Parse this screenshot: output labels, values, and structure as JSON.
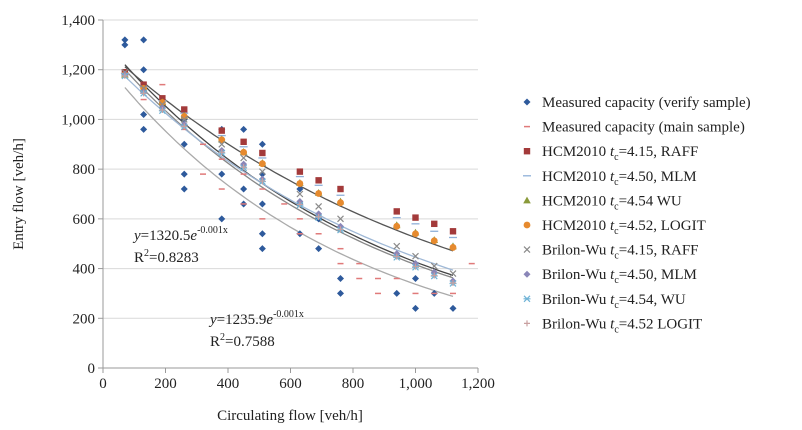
{
  "chart_data": {
    "type": "scatter",
    "title": "",
    "xlabel": "Circulating flow [veh/h]",
    "ylabel": "Entry flow [veh/h]",
    "xlim": [
      0,
      1200
    ],
    "ylim": [
      0,
      1400
    ],
    "x_ticks": [
      0,
      200,
      400,
      600,
      800,
      1000,
      1200
    ],
    "x_tick_labels": [
      "0",
      "200",
      "400",
      "600",
      "800",
      "1,000",
      "1,200"
    ],
    "y_ticks": [
      0,
      200,
      400,
      600,
      800,
      1000,
      1200,
      1400
    ],
    "y_tick_labels": [
      "0",
      "200",
      "400",
      "600",
      "800",
      "1,000",
      "1,200",
      "1,400"
    ],
    "grid": "horizontal",
    "legend_position": "right",
    "series": [
      {
        "name": "Measured capacity (verify sample)",
        "marker": "diamond",
        "color": "#2e5a9c",
        "points": [
          [
            70,
            1320
          ],
          [
            70,
            1300
          ],
          [
            130,
            1320
          ],
          [
            130,
            1200
          ],
          [
            130,
            960
          ],
          [
            130,
            1020
          ],
          [
            260,
            1000
          ],
          [
            260,
            900
          ],
          [
            260,
            780
          ],
          [
            260,
            720
          ],
          [
            380,
            960
          ],
          [
            380,
            780
          ],
          [
            380,
            600
          ],
          [
            450,
            960
          ],
          [
            450,
            720
          ],
          [
            450,
            660
          ],
          [
            510,
            900
          ],
          [
            510,
            780
          ],
          [
            510,
            660
          ],
          [
            510,
            540
          ],
          [
            510,
            480
          ],
          [
            630,
            720
          ],
          [
            630,
            660
          ],
          [
            630,
            540
          ],
          [
            690,
            600
          ],
          [
            690,
            480
          ],
          [
            760,
            360
          ],
          [
            760,
            300
          ],
          [
            940,
            300
          ],
          [
            1000,
            420
          ],
          [
            1000,
            360
          ],
          [
            1000,
            240
          ],
          [
            1060,
            300
          ],
          [
            1120,
            240
          ]
        ]
      },
      {
        "name": "Measured capacity (main sample)",
        "marker": "dash",
        "color": "#e07a7a",
        "points": [
          [
            70,
            1200
          ],
          [
            130,
            1140
          ],
          [
            130,
            1080
          ],
          [
            190,
            1140
          ],
          [
            190,
            1080
          ],
          [
            260,
            960
          ],
          [
            320,
            900
          ],
          [
            320,
            780
          ],
          [
            380,
            840
          ],
          [
            380,
            720
          ],
          [
            450,
            780
          ],
          [
            450,
            660
          ],
          [
            510,
            720
          ],
          [
            510,
            600
          ],
          [
            580,
            660
          ],
          [
            630,
            600
          ],
          [
            630,
            540
          ],
          [
            690,
            540
          ],
          [
            760,
            480
          ],
          [
            760,
            420
          ],
          [
            820,
            420
          ],
          [
            820,
            360
          ],
          [
            880,
            360
          ],
          [
            880,
            300
          ],
          [
            940,
            360
          ],
          [
            1000,
            300
          ],
          [
            1060,
            300
          ],
          [
            1120,
            300
          ],
          [
            1180,
            420
          ]
        ]
      },
      {
        "name": "HCM2010 tc=4.15, RAFF",
        "name_prefix": "HCM2010 ",
        "name_sub": "c",
        "name_suffix": "=4.15, RAFF",
        "marker": "square",
        "color": "#a33a3a",
        "points": [
          [
            70,
            1190
          ],
          [
            130,
            1140
          ],
          [
            190,
            1085
          ],
          [
            260,
            1040
          ],
          [
            380,
            955
          ],
          [
            450,
            910
          ],
          [
            510,
            865
          ],
          [
            630,
            790
          ],
          [
            690,
            755
          ],
          [
            760,
            720
          ],
          [
            940,
            630
          ],
          [
            1000,
            605
          ],
          [
            1060,
            580
          ],
          [
            1120,
            550
          ]
        ]
      },
      {
        "name": "HCM2010 tc=4.50, MLM",
        "name_prefix": "HCM2010 ",
        "name_sub": "c",
        "name_suffix": "=4.50, MLM",
        "marker": "line",
        "color": "#8fb0d8",
        "points": [
          [
            70,
            1185
          ],
          [
            130,
            1130
          ],
          [
            190,
            1075
          ],
          [
            260,
            1025
          ],
          [
            380,
            935
          ],
          [
            450,
            890
          ],
          [
            510,
            845
          ],
          [
            630,
            770
          ],
          [
            690,
            735
          ],
          [
            760,
            695
          ],
          [
            940,
            605
          ],
          [
            1000,
            580
          ],
          [
            1060,
            550
          ],
          [
            1120,
            525
          ]
        ]
      },
      {
        "name": "HCM2010 tc=4.54 WU",
        "name_prefix": "HCM2010 ",
        "name_sub": "c",
        "name_suffix": "=4.54 WU",
        "marker": "triangle",
        "color": "#8a9a3a",
        "points": [
          [
            70,
            1180
          ],
          [
            130,
            1125
          ],
          [
            190,
            1070
          ],
          [
            260,
            1015
          ],
          [
            380,
            920
          ],
          [
            450,
            870
          ],
          [
            510,
            825
          ],
          [
            630,
            745
          ],
          [
            690,
            705
          ],
          [
            760,
            670
          ],
          [
            940,
            575
          ],
          [
            1000,
            545
          ],
          [
            1060,
            515
          ],
          [
            1120,
            490
          ]
        ]
      },
      {
        "name": "HCM2010 tc=4.52, LOGIT",
        "name_prefix": "HCM2010 ",
        "name_sub": "c",
        "name_suffix": "=4.52, LOGIT",
        "marker": "circle",
        "color": "#e68a2e",
        "points": [
          [
            70,
            1180
          ],
          [
            130,
            1125
          ],
          [
            190,
            1068
          ],
          [
            260,
            1012
          ],
          [
            380,
            918
          ],
          [
            450,
            868
          ],
          [
            510,
            822
          ],
          [
            630,
            742
          ],
          [
            690,
            702
          ],
          [
            760,
            665
          ],
          [
            940,
            570
          ],
          [
            1000,
            540
          ],
          [
            1060,
            512
          ],
          [
            1120,
            485
          ]
        ]
      },
      {
        "name": "Brilon-Wu tc=4.15, RAFF",
        "name_prefix": "Brilon-Wu ",
        "name_sub": "c",
        "name_suffix": "=4.15, RAFF",
        "marker": "x",
        "color": "#8a8a8a",
        "points": [
          [
            70,
            1190
          ],
          [
            130,
            1125
          ],
          [
            190,
            1060
          ],
          [
            260,
            1000
          ],
          [
            380,
            900
          ],
          [
            450,
            845
          ],
          [
            510,
            790
          ],
          [
            630,
            700
          ],
          [
            690,
            650
          ],
          [
            760,
            600
          ],
          [
            940,
            490
          ],
          [
            1000,
            450
          ],
          [
            1060,
            410
          ],
          [
            1120,
            380
          ]
        ]
      },
      {
        "name": "Brilon-Wu tc=4.50, MLM",
        "name_prefix": "Brilon-Wu ",
        "name_sub": "c",
        "name_suffix": "=4.50, MLM",
        "marker": "diamond",
        "color": "#8a86b8",
        "points": [
          [
            70,
            1180
          ],
          [
            130,
            1110
          ],
          [
            190,
            1045
          ],
          [
            260,
            980
          ],
          [
            380,
            875
          ],
          [
            450,
            820
          ],
          [
            510,
            760
          ],
          [
            630,
            670
          ],
          [
            690,
            620
          ],
          [
            760,
            570
          ],
          [
            940,
            460
          ],
          [
            1000,
            420
          ],
          [
            1060,
            385
          ],
          [
            1120,
            350
          ]
        ]
      },
      {
        "name": "Brilon-Wu tc=4.54, WU",
        "name_prefix": "Brilon-Wu ",
        "name_sub": "c",
        "name_suffix": "=4.54, WU",
        "marker": "asterisk",
        "color": "#6fb3d6",
        "points": [
          [
            70,
            1175
          ],
          [
            130,
            1105
          ],
          [
            190,
            1035
          ],
          [
            260,
            970
          ],
          [
            380,
            865
          ],
          [
            450,
            805
          ],
          [
            510,
            750
          ],
          [
            630,
            655
          ],
          [
            690,
            605
          ],
          [
            760,
            555
          ],
          [
            940,
            445
          ],
          [
            1000,
            405
          ],
          [
            1060,
            370
          ],
          [
            1120,
            340
          ]
        ]
      },
      {
        "name": "Brilon-Wu tc=4.52 LOGIT",
        "name_prefix": "Brilon-Wu ",
        "name_sub": "c",
        "name_suffix": "=4.52 LOGIT",
        "marker": "plus",
        "color": "#c9a0a0",
        "points": [
          [
            70,
            1175
          ],
          [
            130,
            1105
          ],
          [
            190,
            1038
          ],
          [
            260,
            972
          ],
          [
            380,
            868
          ],
          [
            450,
            808
          ],
          [
            510,
            752
          ],
          [
            630,
            658
          ],
          [
            690,
            608
          ],
          [
            760,
            558
          ],
          [
            940,
            448
          ],
          [
            1000,
            408
          ],
          [
            1060,
            372
          ],
          [
            1120,
            342
          ]
        ]
      }
    ],
    "trendlines": [
      {
        "color": "#444444",
        "a": 1320.5,
        "b": -0.00113
      },
      {
        "color": "#555555",
        "a": 1291.0,
        "b": -0.0009
      },
      {
        "color": "#888888",
        "a": 1300.0,
        "b": -0.00114
      },
      {
        "color": "#aaaaaa",
        "a": 1235.9,
        "b": -0.0013
      },
      {
        "color": "#9fb8d6",
        "a": 1262.0,
        "b": -0.00104
      }
    ],
    "annotations": [
      {
        "y_eq": "y",
        "eq_mid": "=1320.5",
        "e": "e",
        "exp": "-0.001x",
        "r2_prefix": "R",
        "r2_sup": "2",
        "r2_value": "=0.8283"
      },
      {
        "y_eq": "y",
        "eq_mid": "=1235.9",
        "e": "e",
        "exp": "-0.001x",
        "r2_prefix": "R",
        "r2_sup": "2",
        "r2_value": "=0.7588"
      }
    ]
  }
}
